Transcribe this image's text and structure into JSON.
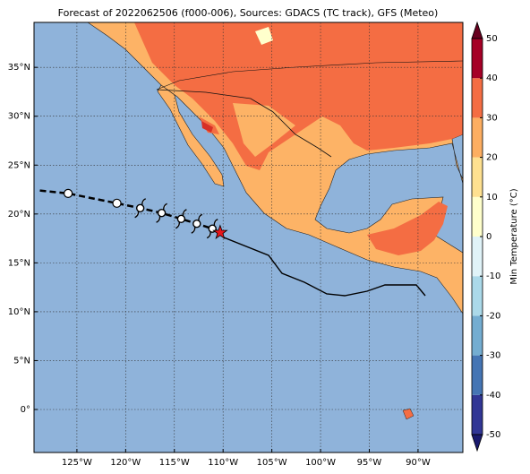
{
  "map": {
    "title": "Forecast of 2022062506 (f000-006), Sources: GDACS (TC track), GFS (Meteo)",
    "xlim": [
      -129.4,
      -85.4
    ],
    "ylim": [
      -4.4,
      39.6
    ],
    "xticks": [
      {
        "value": -125,
        "label": "125°W"
      },
      {
        "value": -120,
        "label": "120°W"
      },
      {
        "value": -115,
        "label": "115°W"
      },
      {
        "value": -110,
        "label": "110°W"
      },
      {
        "value": -105,
        "label": "105°W"
      },
      {
        "value": -100,
        "label": "100°W"
      },
      {
        "value": -95,
        "label": "95°W"
      },
      {
        "value": -90,
        "label": "90°W"
      }
    ],
    "yticks": [
      {
        "value": 0,
        "label": "0°"
      },
      {
        "value": 5,
        "label": "5°N"
      },
      {
        "value": 10,
        "label": "10°N"
      },
      {
        "value": 15,
        "label": "15°N"
      },
      {
        "value": 20,
        "label": "20°N"
      },
      {
        "value": 25,
        "label": "25°N"
      },
      {
        "value": 30,
        "label": "30°N"
      },
      {
        "value": 35,
        "label": "35°N"
      }
    ],
    "grid": true,
    "track_lon": [
      -128.8,
      -125.9,
      -120.9,
      -118.5,
      -116.3,
      -114.3,
      -112.7,
      -111.1,
      -110.3
    ],
    "track_lat": [
      22.4,
      22.1,
      21.1,
      20.6,
      20.1,
      19.5,
      19.0,
      18.5,
      18.1
    ],
    "colorbar": {
      "label": "Min Temperature (°C)",
      "lim": [
        -50,
        50
      ],
      "ticks": [
        -50,
        -40,
        -30,
        -20,
        -10,
        0,
        10,
        20,
        30,
        40,
        50
      ]
    }
  }
}
